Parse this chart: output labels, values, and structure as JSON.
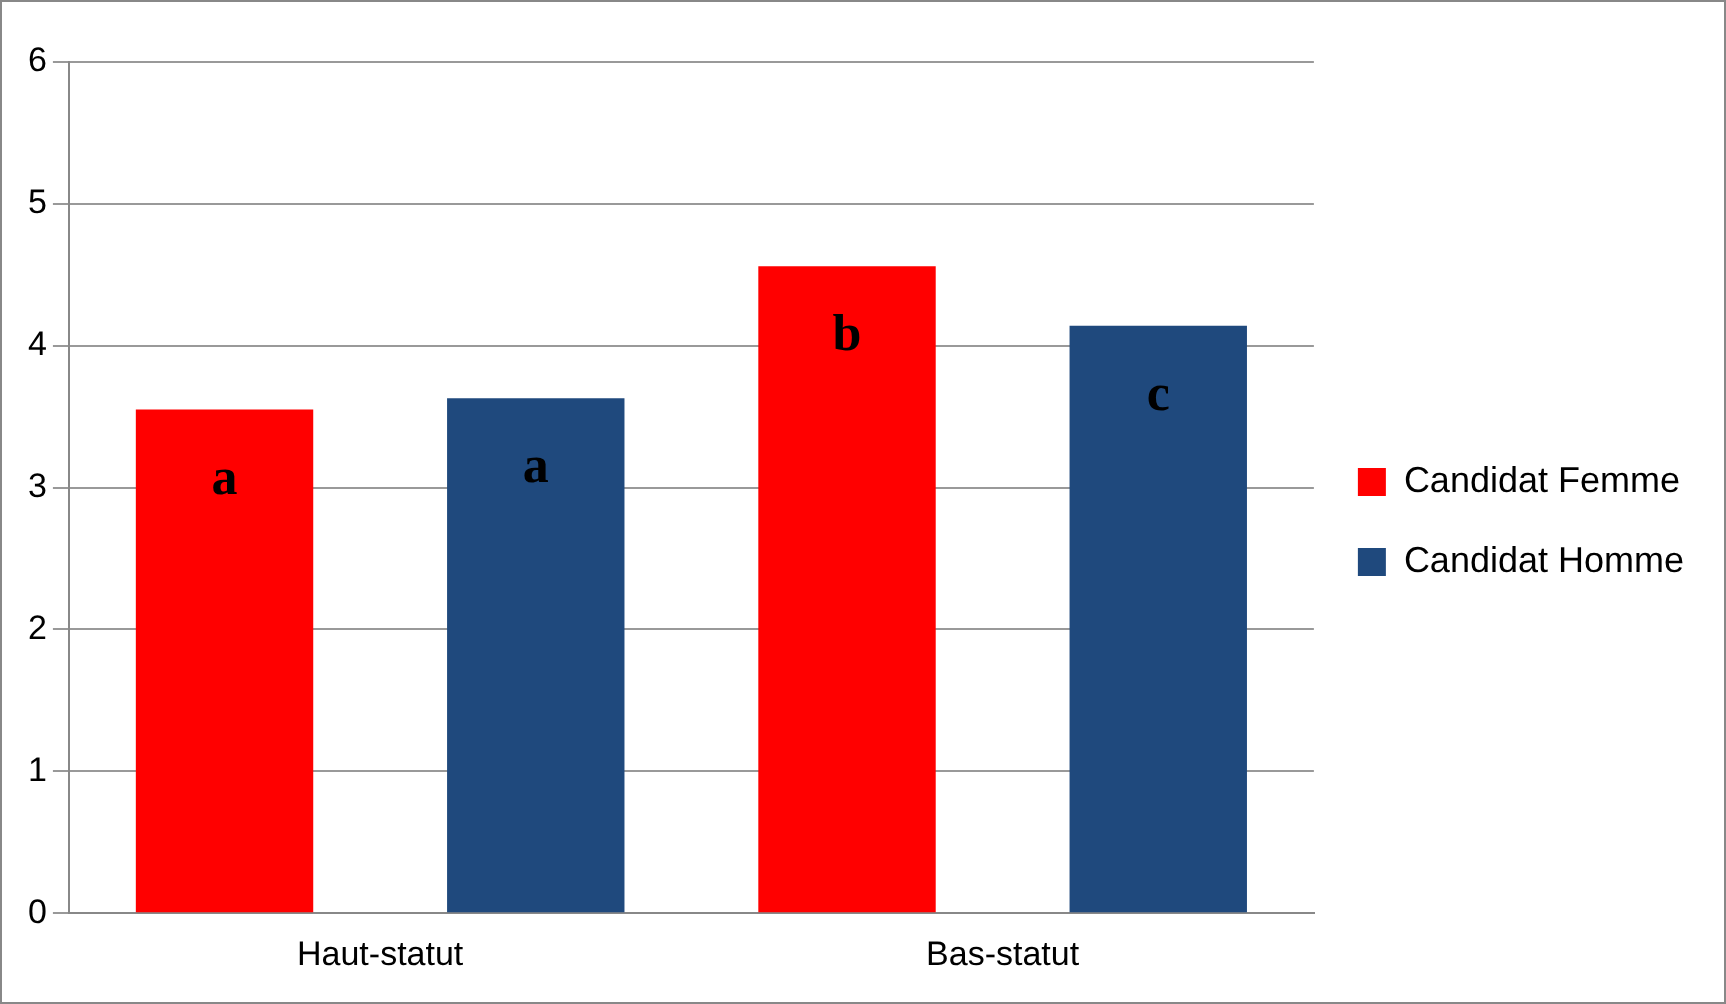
{
  "chart_data": {
    "type": "bar",
    "categories": [
      "Haut-statut",
      "Bas-statut"
    ],
    "series": [
      {
        "name": "Candidat Femme",
        "color": "#ff0000",
        "values": [
          3.55,
          4.56
        ]
      },
      {
        "name": "Candidat Homme",
        "color": "#1f497d",
        "values": [
          3.63,
          4.14
        ]
      }
    ],
    "ylim": [
      0,
      6
    ],
    "yticks": [
      0,
      1,
      2,
      3,
      4,
      5,
      6
    ],
    "grid": "y",
    "legend": "right",
    "annotations": [
      "a",
      "b",
      "a",
      "c"
    ]
  }
}
